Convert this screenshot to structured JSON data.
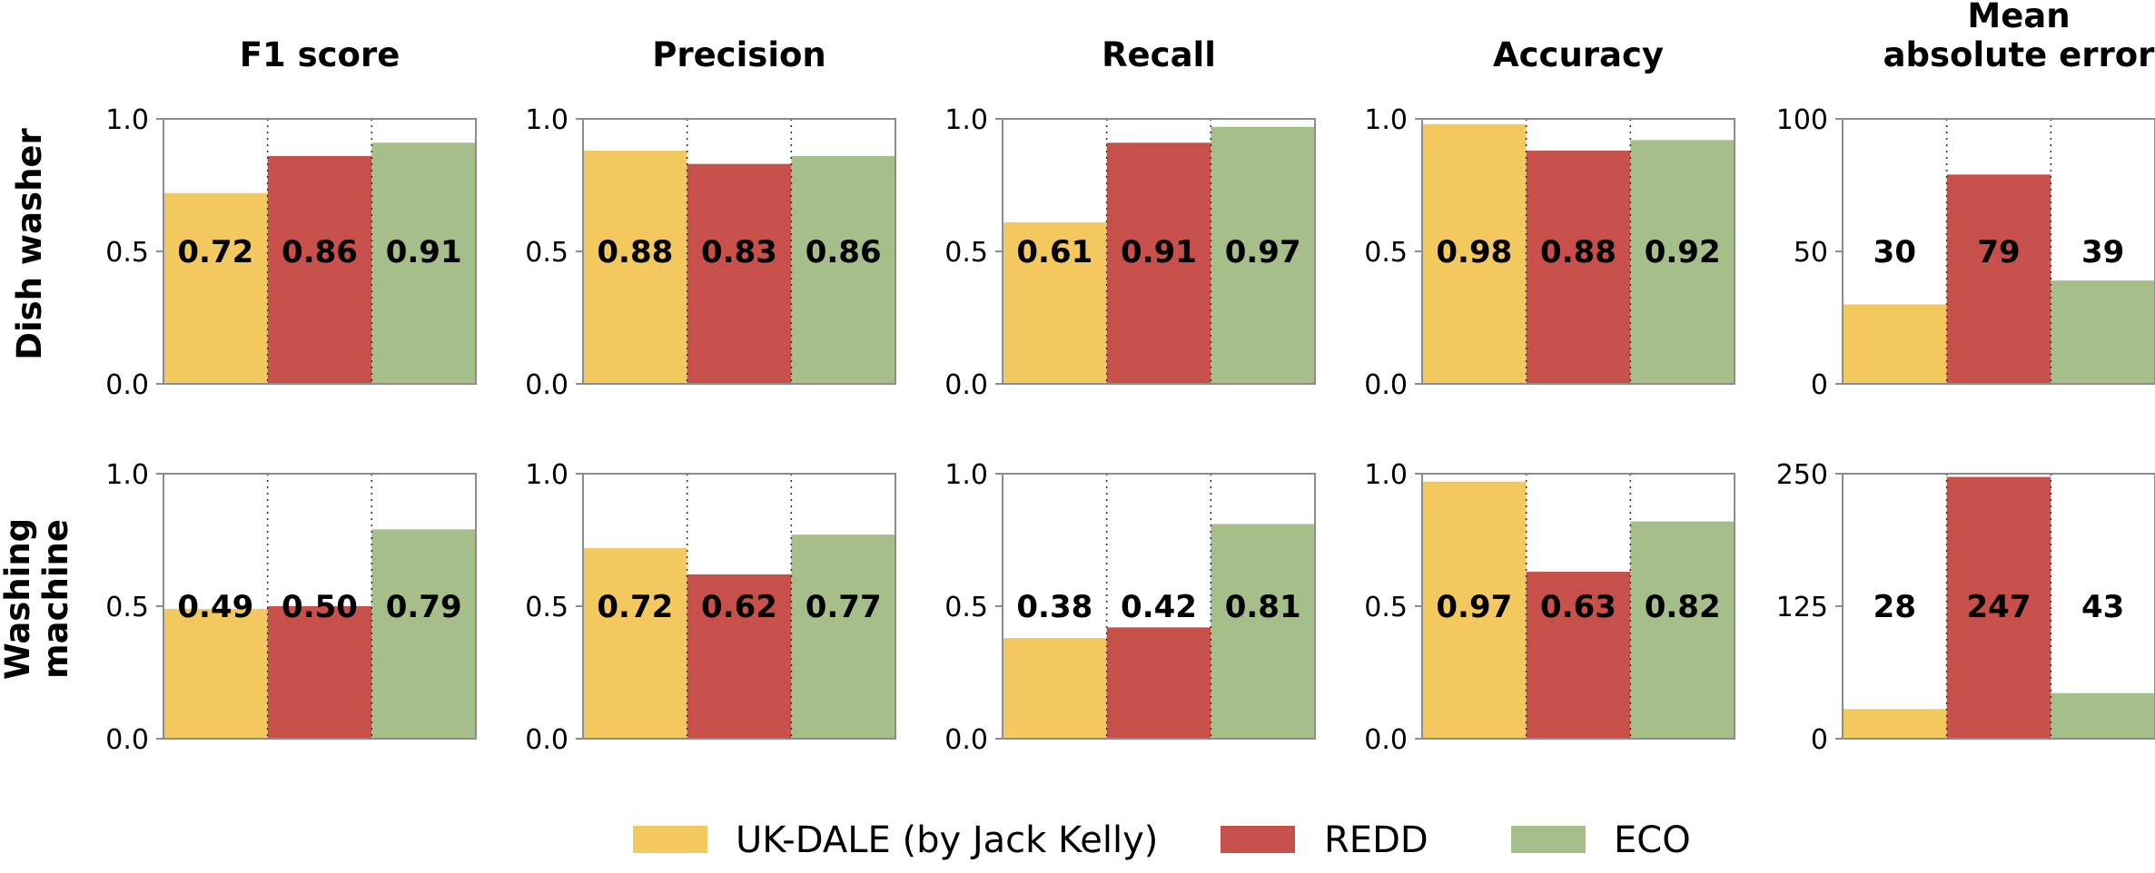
{
  "chart_data": {
    "type": "bar",
    "layout": "grid",
    "columns": [
      "F1 score",
      "Precision",
      "Recall",
      "Accuracy",
      "Mean absolute error"
    ],
    "column_title_lines": [
      [
        "F1 score"
      ],
      [
        "Precision"
      ],
      [
        "Recall"
      ],
      [
        "Accuracy"
      ],
      [
        "Mean",
        "absolute error"
      ]
    ],
    "rows": [
      "Dish washer",
      "Washing machine"
    ],
    "row_title_lines": [
      [
        "Dish washer"
      ],
      [
        "Washing",
        "machine"
      ]
    ],
    "series": [
      {
        "name": "UK-DALE (by Jack Kelly)",
        "color": "#f3c85f"
      },
      {
        "name": "REDD",
        "color": "#c8504a"
      },
      {
        "name": "ECO",
        "color": "#a6bf8a"
      }
    ],
    "panels": [
      [
        {
          "values": [
            0.72,
            0.86,
            0.91
          ],
          "labels": [
            "0.72",
            "0.86",
            "0.91"
          ],
          "ylim": [
            0,
            1.0
          ],
          "ticks": [
            "0.0",
            "0.5",
            "1.0"
          ]
        },
        {
          "values": [
            0.88,
            0.83,
            0.86
          ],
          "labels": [
            "0.88",
            "0.83",
            "0.86"
          ],
          "ylim": [
            0,
            1.0
          ],
          "ticks": [
            "0.0",
            "0.5",
            "1.0"
          ]
        },
        {
          "values": [
            0.61,
            0.91,
            0.97
          ],
          "labels": [
            "0.61",
            "0.91",
            "0.97"
          ],
          "ylim": [
            0,
            1.0
          ],
          "ticks": [
            "0.0",
            "0.5",
            "1.0"
          ]
        },
        {
          "values": [
            0.98,
            0.88,
            0.92
          ],
          "labels": [
            "0.98",
            "0.88",
            "0.92"
          ],
          "ylim": [
            0,
            1.0
          ],
          "ticks": [
            "0.0",
            "0.5",
            "1.0"
          ]
        },
        {
          "values": [
            30,
            79,
            39
          ],
          "labels": [
            "30",
            "79",
            "39"
          ],
          "ylim": [
            0,
            100
          ],
          "ticks": [
            "0",
            "50",
            "100"
          ]
        }
      ],
      [
        {
          "values": [
            0.49,
            0.5,
            0.79
          ],
          "labels": [
            "0.49",
            "0.50",
            "0.79"
          ],
          "ylim": [
            0,
            1.0
          ],
          "ticks": [
            "0.0",
            "0.5",
            "1.0"
          ]
        },
        {
          "values": [
            0.72,
            0.62,
            0.77
          ],
          "labels": [
            "0.72",
            "0.62",
            "0.77"
          ],
          "ylim": [
            0,
            1.0
          ],
          "ticks": [
            "0.0",
            "0.5",
            "1.0"
          ]
        },
        {
          "values": [
            0.38,
            0.42,
            0.81
          ],
          "labels": [
            "0.38",
            "0.42",
            "0.81"
          ],
          "ylim": [
            0,
            1.0
          ],
          "ticks": [
            "0.0",
            "0.5",
            "1.0"
          ]
        },
        {
          "values": [
            0.97,
            0.63,
            0.82
          ],
          "labels": [
            "0.97",
            "0.63",
            "0.82"
          ],
          "ylim": [
            0,
            1.0
          ],
          "ticks": [
            "0.0",
            "0.5",
            "1.0"
          ]
        },
        {
          "values": [
            28,
            247,
            43
          ],
          "labels": [
            "28",
            "247",
            "43"
          ],
          "ylim": [
            0,
            250
          ],
          "ticks": [
            "0",
            "125",
            "250"
          ]
        }
      ]
    ],
    "grid": false,
    "legend_position": "bottom-center"
  }
}
